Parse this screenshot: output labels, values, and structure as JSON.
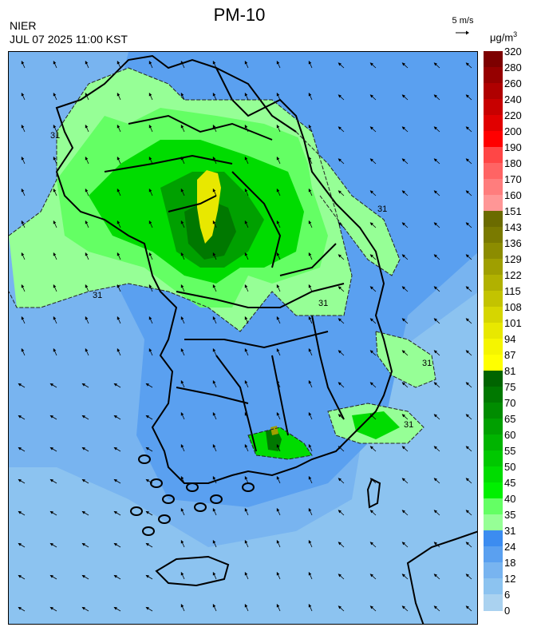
{
  "header": {
    "title": "PM-10",
    "agency": "NIER",
    "timestamp": "JUL 07 2025 11:00 KST",
    "wind_reference": "5 m/s",
    "unit_base": "μg/m",
    "unit_exp": "3"
  },
  "colorbar": {
    "labels": [
      "320",
      "280",
      "260",
      "240",
      "220",
      "200",
      "190",
      "180",
      "170",
      "160",
      "151",
      "143",
      "136",
      "129",
      "122",
      "115",
      "108",
      "101",
      "94",
      "87",
      "81",
      "75",
      "70",
      "65",
      "60",
      "55",
      "50",
      "45",
      "40",
      "35",
      "31",
      "24",
      "18",
      "12",
      "6",
      "0"
    ],
    "colors": [
      "#7d0000",
      "#960000",
      "#af0000",
      "#c80000",
      "#e10000",
      "#ff0000",
      "#ff4646",
      "#ff6464",
      "#ff7d7d",
      "#ff9696",
      "#6b6b00",
      "#7a7a00",
      "#8c8c00",
      "#9f9f00",
      "#b1b100",
      "#c3c300",
      "#d6d600",
      "#e8e800",
      "#f5f500",
      "#ffff00",
      "#006400",
      "#007800",
      "#008c00",
      "#00a000",
      "#00b400",
      "#00c800",
      "#00dc00",
      "#00f000",
      "#64ff64",
      "#96ff96",
      "#3c8cf0",
      "#5aa0f0",
      "#78b4f0",
      "#8cc3f0",
      "#aad2f0"
    ]
  },
  "map": {
    "contour_labels": [
      "31",
      "31",
      "31",
      "31",
      "31",
      "31"
    ],
    "field_colors": {
      "sea_low": "#8cc3f0",
      "sea_mid": "#78b4f0",
      "sea_high": "#5aa0f0",
      "land_low": "#5aa0f0",
      "green_light": "#96ff96",
      "green_mid": "#64ff64",
      "green": "#00dc00",
      "green_dark": "#00a000",
      "green_darker": "#007800",
      "yellow": "#e8e800",
      "olive": "#9f9f00"
    }
  }
}
